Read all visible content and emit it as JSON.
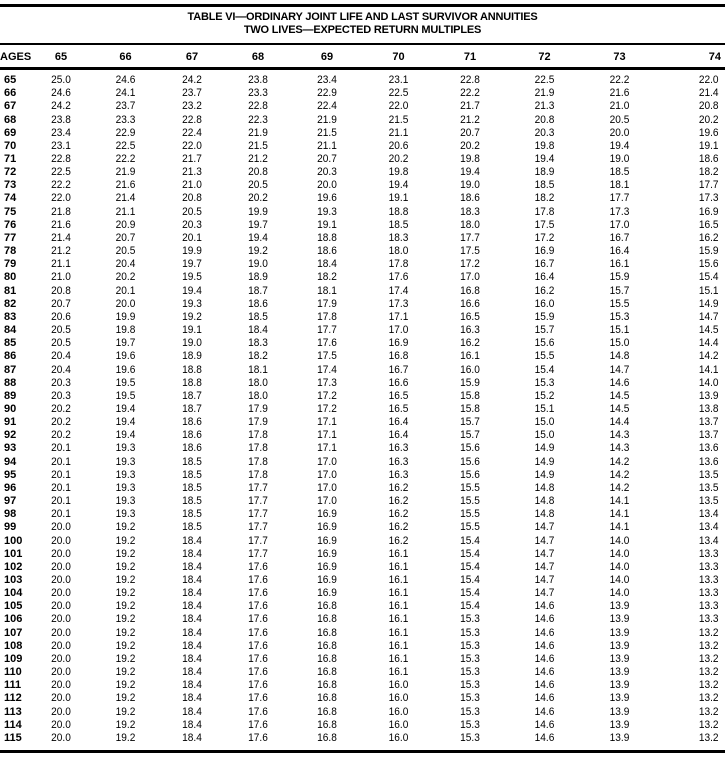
{
  "title_line1": "TABLE VI—ORDINARY JOINT LIFE AND LAST SURVIVOR ANNUITIES",
  "title_line2": "TWO LIVES—EXPECTED RETURN MULTIPLES",
  "columns": [
    "AGES",
    "65",
    "66",
    "67",
    "68",
    "69",
    "70",
    "71",
    "72",
    "73",
    "74"
  ],
  "rows": [
    [
      "65",
      "25.0",
      "24.6",
      "24.2",
      "23.8",
      "23.4",
      "23.1",
      "22.8",
      "22.5",
      "22.2",
      "22.0"
    ],
    [
      "66",
      "24.6",
      "24.1",
      "23.7",
      "23.3",
      "22.9",
      "22.5",
      "22.2",
      "21.9",
      "21.6",
      "21.4"
    ],
    [
      "67",
      "24.2",
      "23.7",
      "23.2",
      "22.8",
      "22.4",
      "22.0",
      "21.7",
      "21.3",
      "21.0",
      "20.8"
    ],
    [
      "68",
      "23.8",
      "23.3",
      "22.8",
      "22.3",
      "21.9",
      "21.5",
      "21.2",
      "20.8",
      "20.5",
      "20.2"
    ],
    [
      "69",
      "23.4",
      "22.9",
      "22.4",
      "21.9",
      "21.5",
      "21.1",
      "20.7",
      "20.3",
      "20.0",
      "19.6"
    ],
    [
      "70",
      "23.1",
      "22.5",
      "22.0",
      "21.5",
      "21.1",
      "20.6",
      "20.2",
      "19.8",
      "19.4",
      "19.1"
    ],
    [
      "71",
      "22.8",
      "22.2",
      "21.7",
      "21.2",
      "20.7",
      "20.2",
      "19.8",
      "19.4",
      "19.0",
      "18.6"
    ],
    [
      "72",
      "22.5",
      "21.9",
      "21.3",
      "20.8",
      "20.3",
      "19.8",
      "19.4",
      "18.9",
      "18.5",
      "18.2"
    ],
    [
      "73",
      "22.2",
      "21.6",
      "21.0",
      "20.5",
      "20.0",
      "19.4",
      "19.0",
      "18.5",
      "18.1",
      "17.7"
    ],
    [
      "74",
      "22.0",
      "21.4",
      "20.8",
      "20.2",
      "19.6",
      "19.1",
      "18.6",
      "18.2",
      "17.7",
      "17.3"
    ],
    [
      "75",
      "21.8",
      "21.1",
      "20.5",
      "19.9",
      "19.3",
      "18.8",
      "18.3",
      "17.8",
      "17.3",
      "16.9"
    ],
    [
      "76",
      "21.6",
      "20.9",
      "20.3",
      "19.7",
      "19.1",
      "18.5",
      "18.0",
      "17.5",
      "17.0",
      "16.5"
    ],
    [
      "77",
      "21.4",
      "20.7",
      "20.1",
      "19.4",
      "18.8",
      "18.3",
      "17.7",
      "17.2",
      "16.7",
      "16.2"
    ],
    [
      "78",
      "21.2",
      "20.5",
      "19.9",
      "19.2",
      "18.6",
      "18.0",
      "17.5",
      "16.9",
      "16.4",
      "15.9"
    ],
    [
      "79",
      "21.1",
      "20.4",
      "19.7",
      "19.0",
      "18.4",
      "17.8",
      "17.2",
      "16.7",
      "16.1",
      "15.6"
    ],
    [
      "80",
      "21.0",
      "20.2",
      "19.5",
      "18.9",
      "18.2",
      "17.6",
      "17.0",
      "16.4",
      "15.9",
      "15.4"
    ],
    [
      "81",
      "20.8",
      "20.1",
      "19.4",
      "18.7",
      "18.1",
      "17.4",
      "16.8",
      "16.2",
      "15.7",
      "15.1"
    ],
    [
      "82",
      "20.7",
      "20.0",
      "19.3",
      "18.6",
      "17.9",
      "17.3",
      "16.6",
      "16.0",
      "15.5",
      "14.9"
    ],
    [
      "83",
      "20.6",
      "19.9",
      "19.2",
      "18.5",
      "17.8",
      "17.1",
      "16.5",
      "15.9",
      "15.3",
      "14.7"
    ],
    [
      "84",
      "20.5",
      "19.8",
      "19.1",
      "18.4",
      "17.7",
      "17.0",
      "16.3",
      "15.7",
      "15.1",
      "14.5"
    ],
    [
      "85",
      "20.5",
      "19.7",
      "19.0",
      "18.3",
      "17.6",
      "16.9",
      "16.2",
      "15.6",
      "15.0",
      "14.4"
    ],
    [
      "86",
      "20.4",
      "19.6",
      "18.9",
      "18.2",
      "17.5",
      "16.8",
      "16.1",
      "15.5",
      "14.8",
      "14.2"
    ],
    [
      "87",
      "20.4",
      "19.6",
      "18.8",
      "18.1",
      "17.4",
      "16.7",
      "16.0",
      "15.4",
      "14.7",
      "14.1"
    ],
    [
      "88",
      "20.3",
      "19.5",
      "18.8",
      "18.0",
      "17.3",
      "16.6",
      "15.9",
      "15.3",
      "14.6",
      "14.0"
    ],
    [
      "89",
      "20.3",
      "19.5",
      "18.7",
      "18.0",
      "17.2",
      "16.5",
      "15.8",
      "15.2",
      "14.5",
      "13.9"
    ],
    [
      "90",
      "20.2",
      "19.4",
      "18.7",
      "17.9",
      "17.2",
      "16.5",
      "15.8",
      "15.1",
      "14.5",
      "13.8"
    ],
    [
      "91",
      "20.2",
      "19.4",
      "18.6",
      "17.9",
      "17.1",
      "16.4",
      "15.7",
      "15.0",
      "14.4",
      "13.7"
    ],
    [
      "92",
      "20.2",
      "19.4",
      "18.6",
      "17.8",
      "17.1",
      "16.4",
      "15.7",
      "15.0",
      "14.3",
      "13.7"
    ],
    [
      "93",
      "20.1",
      "19.3",
      "18.6",
      "17.8",
      "17.1",
      "16.3",
      "15.6",
      "14.9",
      "14.3",
      "13.6"
    ],
    [
      "94",
      "20.1",
      "19.3",
      "18.5",
      "17.8",
      "17.0",
      "16.3",
      "15.6",
      "14.9",
      "14.2",
      "13.6"
    ],
    [
      "95",
      "20.1",
      "19.3",
      "18.5",
      "17.8",
      "17.0",
      "16.3",
      "15.6",
      "14.9",
      "14.2",
      "13.5"
    ],
    [
      "96",
      "20.1",
      "19.3",
      "18.5",
      "17.7",
      "17.0",
      "16.2",
      "15.5",
      "14.8",
      "14.2",
      "13.5"
    ],
    [
      "97",
      "20.1",
      "19.3",
      "18.5",
      "17.7",
      "17.0",
      "16.2",
      "15.5",
      "14.8",
      "14.1",
      "13.5"
    ],
    [
      "98",
      "20.1",
      "19.3",
      "18.5",
      "17.7",
      "16.9",
      "16.2",
      "15.5",
      "14.8",
      "14.1",
      "13.4"
    ],
    [
      "99",
      "20.0",
      "19.2",
      "18.5",
      "17.7",
      "16.9",
      "16.2",
      "15.5",
      "14.7",
      "14.1",
      "13.4"
    ],
    [
      "100",
      "20.0",
      "19.2",
      "18.4",
      "17.7",
      "16.9",
      "16.2",
      "15.4",
      "14.7",
      "14.0",
      "13.4"
    ],
    [
      "101",
      "20.0",
      "19.2",
      "18.4",
      "17.7",
      "16.9",
      "16.1",
      "15.4",
      "14.7",
      "14.0",
      "13.3"
    ],
    [
      "102",
      "20.0",
      "19.2",
      "18.4",
      "17.6",
      "16.9",
      "16.1",
      "15.4",
      "14.7",
      "14.0",
      "13.3"
    ],
    [
      "103",
      "20.0",
      "19.2",
      "18.4",
      "17.6",
      "16.9",
      "16.1",
      "15.4",
      "14.7",
      "14.0",
      "13.3"
    ],
    [
      "104",
      "20.0",
      "19.2",
      "18.4",
      "17.6",
      "16.9",
      "16.1",
      "15.4",
      "14.7",
      "14.0",
      "13.3"
    ],
    [
      "105",
      "20.0",
      "19.2",
      "18.4",
      "17.6",
      "16.8",
      "16.1",
      "15.4",
      "14.6",
      "13.9",
      "13.3"
    ],
    [
      "106",
      "20.0",
      "19.2",
      "18.4",
      "17.6",
      "16.8",
      "16.1",
      "15.3",
      "14.6",
      "13.9",
      "13.3"
    ],
    [
      "107",
      "20.0",
      "19.2",
      "18.4",
      "17.6",
      "16.8",
      "16.1",
      "15.3",
      "14.6",
      "13.9",
      "13.2"
    ],
    [
      "108",
      "20.0",
      "19.2",
      "18.4",
      "17.6",
      "16.8",
      "16.1",
      "15.3",
      "14.6",
      "13.9",
      "13.2"
    ],
    [
      "109",
      "20.0",
      "19.2",
      "18.4",
      "17.6",
      "16.8",
      "16.1",
      "15.3",
      "14.6",
      "13.9",
      "13.2"
    ],
    [
      "110",
      "20.0",
      "19.2",
      "18.4",
      "17.6",
      "16.8",
      "16.1",
      "15.3",
      "14.6",
      "13.9",
      "13.2"
    ],
    [
      "111",
      "20.0",
      "19.2",
      "18.4",
      "17.6",
      "16.8",
      "16.0",
      "15.3",
      "14.6",
      "13.9",
      "13.2"
    ],
    [
      "112",
      "20.0",
      "19.2",
      "18.4",
      "17.6",
      "16.8",
      "16.0",
      "15.3",
      "14.6",
      "13.9",
      "13.2"
    ],
    [
      "113",
      "20.0",
      "19.2",
      "18.4",
      "17.6",
      "16.8",
      "16.0",
      "15.3",
      "14.6",
      "13.9",
      "13.2"
    ],
    [
      "114",
      "20.0",
      "19.2",
      "18.4",
      "17.6",
      "16.8",
      "16.0",
      "15.3",
      "14.6",
      "13.9",
      "13.2"
    ],
    [
      "115",
      "20.0",
      "19.2",
      "18.4",
      "17.6",
      "16.8",
      "16.0",
      "15.3",
      "14.6",
      "13.9",
      "13.2"
    ]
  ]
}
